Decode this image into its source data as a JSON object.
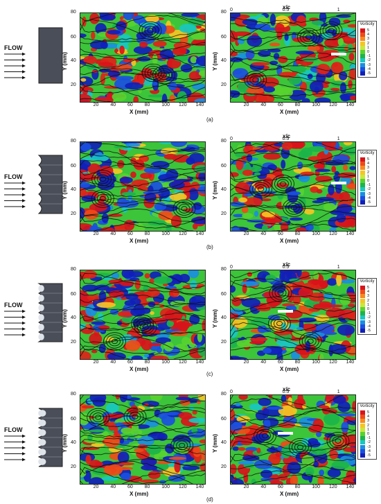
{
  "flow_label": "FLOW",
  "axis": {
    "x_label": "X (mm)",
    "y_label": "Y (mm)",
    "xc_label": "x/c",
    "x_ticks": [
      "20",
      "40",
      "60",
      "80",
      "100",
      "120",
      "140"
    ],
    "y_ticks": [
      "20",
      "40",
      "60",
      "80"
    ],
    "xc_ticks": [
      "0",
      "0.5",
      "1"
    ]
  },
  "colorbar": {
    "title": "Vorticity",
    "levels": [
      "5",
      "4",
      "3",
      "2",
      "1",
      "0",
      "-1",
      "-2",
      "-3",
      "-4",
      "-5"
    ],
    "colors": [
      "#d8141a",
      "#f04a18",
      "#f78a1e",
      "#f5c623",
      "#c8e83a",
      "#58d22f",
      "#1cb44a",
      "#18c8c0",
      "#1a8ee0",
      "#1a4fe0",
      "#1020b8"
    ]
  },
  "panels": [
    {
      "label": "(a)",
      "plate": "straight"
    },
    {
      "label": "(b)",
      "plate": "serrated-small"
    },
    {
      "label": "(c)",
      "plate": "serrated-medium"
    },
    {
      "label": "(d)",
      "plate": "serrated-large"
    }
  ]
}
